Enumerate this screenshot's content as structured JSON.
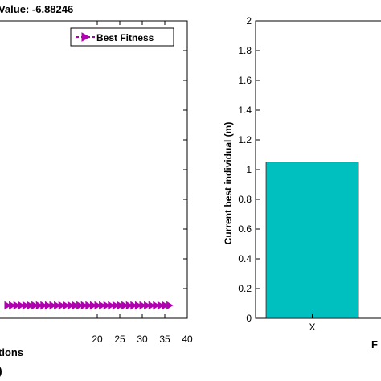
{
  "figure": {
    "left_title": "Value: -6.88246",
    "left_panel_letter": ")",
    "right_panel_letter": "F"
  },
  "chart_data": [
    {
      "type": "line",
      "title": "Value: -6.88246",
      "xlabel": "tions",
      "ylabel": "",
      "xlim": [
        0,
        40
      ],
      "xticks": [
        20,
        25,
        30,
        35,
        40
      ],
      "legend": {
        "entries": [
          "Best Fitness"
        ],
        "placement": "top-right"
      },
      "series": [
        {
          "name": "Best Fitness",
          "color": "#b000b0",
          "marker": "triangle-right",
          "x": [
            0,
            1,
            2,
            3,
            4,
            5,
            6,
            7,
            8,
            9,
            10,
            11,
            12,
            13,
            14,
            15,
            16,
            17,
            18,
            19,
            20,
            21,
            22,
            23,
            24,
            25,
            26,
            27,
            28,
            29,
            30,
            31,
            32,
            33,
            34,
            35,
            36
          ],
          "y": [
            -6.88246,
            -6.88246,
            -6.88246,
            -6.88246,
            -6.88246,
            -6.88246,
            -6.88246,
            -6.88246,
            -6.88246,
            -6.88246,
            -6.88246,
            -6.88246,
            -6.88246,
            -6.88246,
            -6.88246,
            -6.88246,
            -6.88246,
            -6.88246,
            -6.88246,
            -6.88246,
            -6.88246,
            -6.88246,
            -6.88246,
            -6.88246,
            -6.88246,
            -6.88246,
            -6.88246,
            -6.88246,
            -6.88246,
            -6.88246,
            -6.88246,
            -6.88246,
            -6.88246,
            -6.88246,
            -6.88246,
            -6.88246,
            -6.88246
          ]
        }
      ]
    },
    {
      "type": "bar",
      "title": "",
      "xlabel": "",
      "ylabel": "Current best individual (m)",
      "ylim": [
        0,
        2
      ],
      "yticks": [
        "0",
        "0.2",
        "0.4",
        "0.6",
        "0.8",
        "1",
        "1.2",
        "1.4",
        "1.6",
        "1.8",
        "2"
      ],
      "categories": [
        "X"
      ],
      "values": [
        1.05
      ],
      "bar_color": "#00bfbf"
    }
  ]
}
